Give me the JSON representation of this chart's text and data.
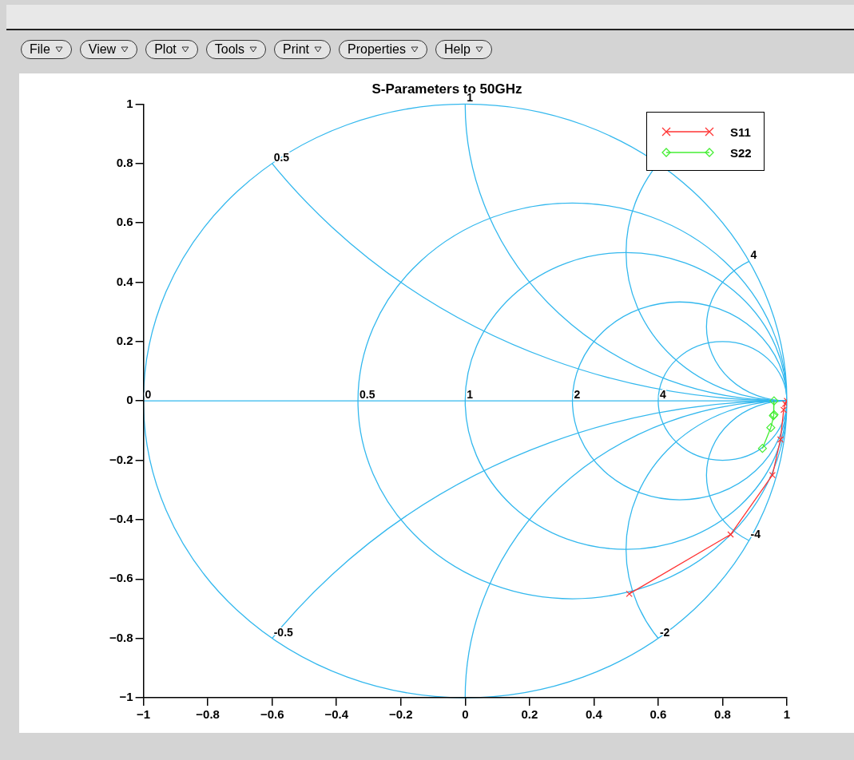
{
  "chart_data": {
    "type": "line",
    "subtitle": "S-Parameters to 50GHz",
    "series": [
      {
        "name": "S11",
        "color": "#ff3333",
        "marker": "cross",
        "x": [
          1.0,
          0.995,
          0.99,
          0.98,
          0.955,
          0.825,
          0.51
        ],
        "values": [
          0,
          -0.01,
          -0.03,
          -0.13,
          -0.25,
          -0.45,
          -0.65
        ]
      },
      {
        "name": "S22",
        "color": "#44ee33",
        "marker": "diamond",
        "x": [
          0.96,
          0.96,
          0.958,
          0.95,
          0.924
        ],
        "values": [
          0,
          -0.046,
          -0.05,
          -0.09,
          -0.16
        ]
      }
    ],
    "ref_lines": [
      {
        "axis": "y",
        "value": 0,
        "color": "#33b8ee"
      }
    ],
    "xlim": [
      -1,
      1
    ],
    "ylim": [
      -1,
      1
    ],
    "xticks": [
      -1,
      -0.8,
      -0.6,
      -0.4,
      -0.2,
      0,
      0.2,
      0.4,
      0.6,
      0.8,
      1
    ],
    "yticks": [
      -1,
      -0.8,
      -0.6,
      -0.4,
      -0.2,
      0,
      0.2,
      0.4,
      0.6,
      0.8,
      1
    ],
    "legend": "top right",
    "annotations": [
      "File",
      "View",
      "Plot",
      "Tools",
      "Print",
      "Properties",
      "Help",
      "0",
      "0.5",
      "1",
      "2",
      "4",
      "0.5",
      "1",
      "4",
      "-0.5",
      "-2",
      "-4"
    ]
  }
}
